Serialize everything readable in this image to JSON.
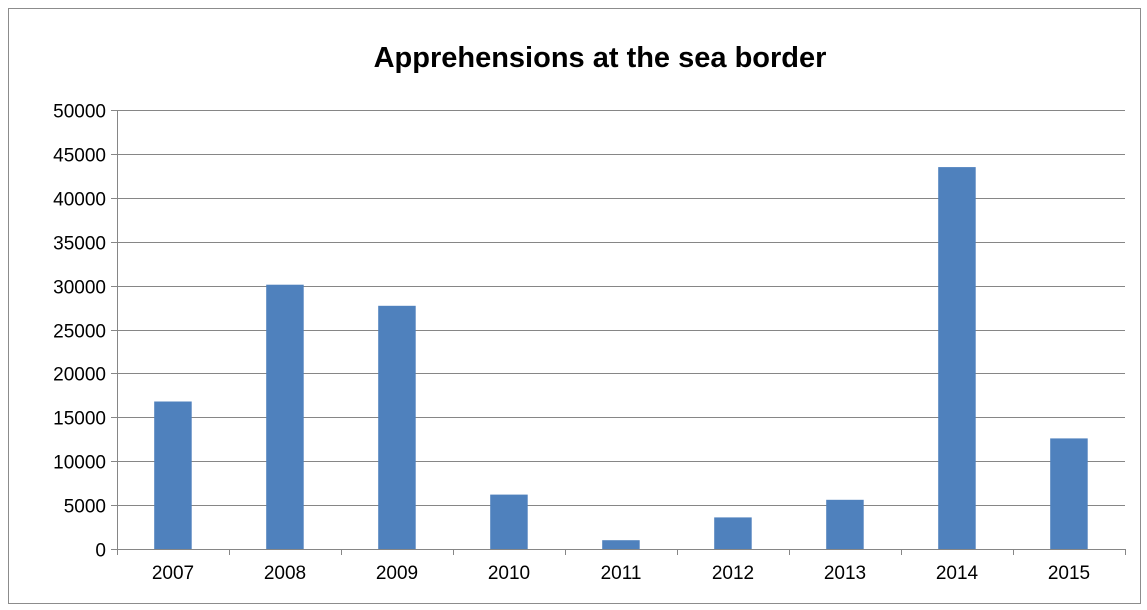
{
  "chart_data": {
    "type": "bar",
    "title": "Apprehensions at the sea border",
    "xlabel": "",
    "ylabel": "",
    "categories": [
      "2007",
      "2008",
      "2009",
      "2010",
      "2011",
      "2012",
      "2013",
      "2014",
      "2015"
    ],
    "values": [
      16800,
      30100,
      27700,
      6200,
      1000,
      3600,
      5600,
      43500,
      12600
    ],
    "ylim": [
      0,
      50000
    ],
    "yticks": [
      0,
      5000,
      10000,
      15000,
      20000,
      25000,
      30000,
      35000,
      40000,
      45000,
      50000
    ],
    "grid": true,
    "legend": "none",
    "bar_color": "#4f81bd",
    "gridline_color": "#868686"
  }
}
